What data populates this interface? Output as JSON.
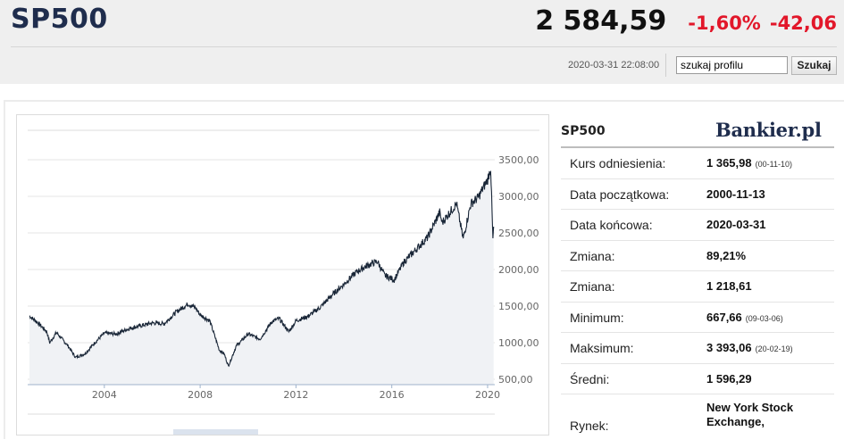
{
  "header": {
    "ticker": "SP500",
    "price": "2 584,59",
    "change_pct": "-1,60%",
    "change_abs": "-42,06",
    "timestamp": "2020-03-31 22:08:00",
    "search_value": "szukaj profilu",
    "search_button": "Szukaj"
  },
  "colors": {
    "brand": "#1f2d4d",
    "negative": "#e2172a",
    "line": "#1a2738",
    "area": "#f0f2f5"
  },
  "chart_data": {
    "type": "area",
    "ylim": [
      500,
      3500
    ],
    "xlim": [
      2000.8,
      2020.3
    ],
    "y_ticks": [
      "3500,00",
      "3000,00",
      "2500,00",
      "2000,00",
      "1500,00",
      "1000,00",
      "500,00"
    ],
    "x_ticks": [
      "2004",
      "2008",
      "2012",
      "2016",
      "2020"
    ],
    "x_tick_values": [
      2004,
      2008,
      2012,
      2016,
      2020
    ],
    "y_tick_values": [
      3500,
      3000,
      2500,
      2000,
      1500,
      1000,
      500
    ],
    "x": [
      2000.87,
      2001.2,
      2001.6,
      2001.72,
      2002.0,
      2002.5,
      2002.8,
      2003.2,
      2003.6,
      2004.0,
      2004.5,
      2005.0,
      2005.5,
      2006.0,
      2006.5,
      2007.0,
      2007.5,
      2007.8,
      2008.0,
      2008.4,
      2008.8,
      2009.0,
      2009.18,
      2009.5,
      2010.0,
      2010.5,
      2011.0,
      2011.3,
      2011.7,
      2012.0,
      2012.5,
      2013.0,
      2013.5,
      2014.0,
      2014.5,
      2015.0,
      2015.4,
      2015.7,
      2016.1,
      2016.5,
      2017.0,
      2017.5,
      2018.0,
      2018.1,
      2018.7,
      2018.98,
      2019.3,
      2019.6,
      2020.0,
      2020.13,
      2020.22,
      2020.25
    ],
    "y": [
      1366,
      1280,
      1150,
      1000,
      1140,
      950,
      800,
      850,
      1000,
      1130,
      1120,
      1190,
      1230,
      1270,
      1260,
      1420,
      1530,
      1480,
      1380,
      1300,
      900,
      850,
      680,
      950,
      1120,
      1050,
      1290,
      1330,
      1150,
      1300,
      1360,
      1480,
      1650,
      1800,
      1960,
      2060,
      2110,
      1920,
      1860,
      2100,
      2270,
      2440,
      2780,
      2640,
      2900,
      2420,
      2900,
      2980,
      3230,
      3393,
      2400,
      2585
    ]
  },
  "panel": {
    "title": "SP500",
    "logo": "Bankier.pl",
    "rows": [
      {
        "label": "Kurs odniesienia:",
        "value": "1 365,98",
        "sub": "(00-11-10)"
      },
      {
        "label": "Data początkowa:",
        "value": "2000-11-13",
        "sub": ""
      },
      {
        "label": "Data końcowa:",
        "value": "2020-03-31",
        "sub": ""
      },
      {
        "label": "Zmiana:",
        "value": "89,21%",
        "sub": ""
      },
      {
        "label": "Zmiana:",
        "value": "1 218,61",
        "sub": ""
      },
      {
        "label": "Minimum:",
        "value": "667,66",
        "sub": "(09-03-06)"
      },
      {
        "label": "Maksimum:",
        "value": "3 393,06",
        "sub": "(20-02-19)"
      },
      {
        "label": "Średni:",
        "value": "1 596,29",
        "sub": ""
      },
      {
        "label": "Rynek:",
        "value": "New York Stock Exchange,",
        "sub": ""
      }
    ]
  }
}
